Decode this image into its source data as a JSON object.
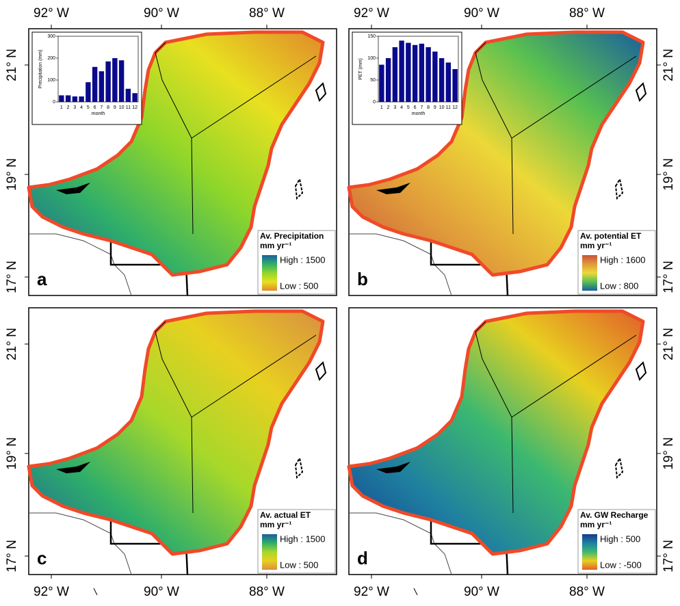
{
  "longitude_labels": [
    "92° W",
    "90° W",
    "88° W"
  ],
  "latitude_labels": [
    "21° N",
    "19° N",
    "17° N"
  ],
  "panels": [
    {
      "label": "a",
      "legend": {
        "title": "Av. Precipitation",
        "unit": "mm yr⁻¹",
        "high": "High : 1500",
        "low": "Low : 500",
        "colors": [
          "#1b5f9c",
          "#2fae6a",
          "#8fd62a",
          "#e8e020",
          "#e08a2a"
        ]
      },
      "inset": {
        "type": "bar",
        "ylabel": "Precipitation (mm)",
        "xlabel": "month",
        "categories": [
          1,
          2,
          3,
          4,
          5,
          6,
          7,
          8,
          9,
          10,
          11,
          12
        ],
        "values": [
          30,
          30,
          25,
          25,
          90,
          160,
          140,
          185,
          200,
          190,
          60,
          40
        ],
        "ylim": [
          0,
          300
        ],
        "yticks": [
          0,
          100,
          200,
          300
        ],
        "color": "#0a0a8c"
      }
    },
    {
      "label": "b",
      "legend": {
        "title": "Av. potential ET",
        "unit": "mm yr⁻¹",
        "high": "High : 1600",
        "low": "Low : 800",
        "colors": [
          "#c8523a",
          "#e09a3a",
          "#ecd838",
          "#58c050",
          "#1b5f9c"
        ]
      },
      "inset": {
        "type": "bar",
        "ylabel": "PET (mm)",
        "xlabel": "month",
        "categories": [
          1,
          2,
          3,
          4,
          5,
          6,
          7,
          8,
          9,
          10,
          11,
          12
        ],
        "values": [
          85,
          100,
          125,
          140,
          135,
          130,
          133,
          125,
          115,
          100,
          90,
          75
        ],
        "ylim": [
          0,
          150
        ],
        "yticks": [
          0,
          50,
          100,
          150
        ],
        "color": "#0a0a8c"
      }
    },
    {
      "label": "c",
      "legend": {
        "title": "Av. actual ET",
        "unit": "mm yr⁻¹",
        "high": "High : 1500",
        "low": "Low : 500",
        "colors": [
          "#1b5f9c",
          "#2fae6a",
          "#a6d82a",
          "#e8d020",
          "#d89040"
        ]
      }
    },
    {
      "label": "d",
      "legend": {
        "title": "Av. GW Recharge",
        "unit": "mm yr⁻¹",
        "high": "High : 500",
        "low": "Low : -500",
        "colors": [
          "#123c8c",
          "#1f7fa0",
          "#3cb870",
          "#e8d020",
          "#e0602a"
        ]
      }
    }
  ]
}
